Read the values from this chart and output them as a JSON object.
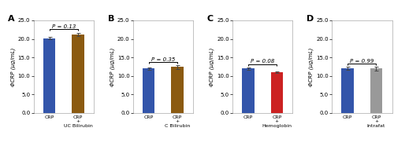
{
  "panels": [
    {
      "label": "A",
      "bars": [
        {
          "x_label": "CRP",
          "value": 20.2,
          "error": 0.3,
          "color": "#3355AA"
        },
        {
          "x_label": "CRP\n+\nUC Bilirubin",
          "value": 21.2,
          "error": 0.5,
          "color": "#8B5A10"
        }
      ],
      "p_text": "P = 0.13",
      "ylim": [
        0,
        25
      ],
      "yticks": [
        0.0,
        5.0,
        10.0,
        15.0,
        20.0,
        25.0
      ]
    },
    {
      "label": "B",
      "bars": [
        {
          "x_label": "CRP",
          "value": 12.0,
          "error": 0.3,
          "color": "#3355AA"
        },
        {
          "x_label": "CRP\n+\nC Bilirubin",
          "value": 12.4,
          "error": 0.45,
          "color": "#8B5A10"
        }
      ],
      "p_text": "P = 0.35",
      "ylim": [
        0,
        25
      ],
      "yticks": [
        0.0,
        5.0,
        10.0,
        15.0,
        20.0,
        25.0
      ]
    },
    {
      "label": "C",
      "bars": [
        {
          "x_label": "CRP",
          "value": 12.0,
          "error": 0.3,
          "color": "#3355AA"
        },
        {
          "x_label": "CRP\n+\nHemoglobin",
          "value": 11.0,
          "error": 0.2,
          "color": "#CC2222"
        }
      ],
      "p_text": "P = 0.08",
      "ylim": [
        0,
        25
      ],
      "yticks": [
        0.0,
        5.0,
        10.0,
        15.0,
        20.0,
        25.0
      ]
    },
    {
      "label": "D",
      "bars": [
        {
          "x_label": "CRP",
          "value": 12.1,
          "error": 0.35,
          "color": "#3355AA"
        },
        {
          "x_label": "CRP\n+\nIntrafat",
          "value": 12.0,
          "error": 0.5,
          "color": "#999999"
        }
      ],
      "p_text": "P = 0.99",
      "ylim": [
        0,
        25
      ],
      "yticks": [
        0.0,
        5.0,
        10.0,
        15.0,
        20.0,
        25.0
      ]
    }
  ],
  "ylabel": "ΦCRP (μg/mL)",
  "fig_width": 5.0,
  "fig_height": 2.0,
  "dpi": 100
}
